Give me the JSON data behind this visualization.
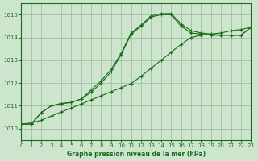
{
  "title": "Graphe pression niveau de la mer (hPa)",
  "bg_color": "#cce5cc",
  "grid_color": "#99bb99",
  "line_color": "#1a6b1a",
  "xlim": [
    0,
    23
  ],
  "ylim": [
    1009.5,
    1015.5
  ],
  "yticks": [
    1010,
    1011,
    1012,
    1013,
    1014,
    1015
  ],
  "xticks": [
    0,
    1,
    2,
    3,
    4,
    5,
    6,
    7,
    8,
    9,
    10,
    11,
    12,
    13,
    14,
    15,
    16,
    17,
    18,
    19,
    20,
    21,
    22,
    23
  ],
  "series_solid1": [
    1010.2,
    1010.2,
    1010.7,
    1011.0,
    1011.1,
    1011.15,
    1011.3,
    1011.6,
    1012.0,
    1012.5,
    1013.25,
    1014.15,
    1014.5,
    1014.9,
    1015.0,
    1015.0,
    1014.5,
    1014.2,
    1014.15,
    1014.1,
    1014.1,
    1014.1,
    1014.1,
    1014.45
  ],
  "series_solid2": [
    1010.2,
    1010.2,
    1010.7,
    1011.0,
    1011.1,
    1011.15,
    1011.3,
    1011.7,
    1012.1,
    1012.6,
    1013.3,
    1014.2,
    1014.55,
    1014.95,
    1015.05,
    1015.05,
    1014.6,
    1014.3,
    1014.2,
    1014.15,
    1014.1,
    1014.1,
    1014.1,
    1014.45
  ],
  "series_linear": [
    1010.2,
    1010.25,
    1010.37,
    1010.55,
    1010.73,
    1010.9,
    1011.08,
    1011.26,
    1011.44,
    1011.62,
    1011.8,
    1011.98,
    1012.3,
    1012.65,
    1013.0,
    1013.35,
    1013.7,
    1014.0,
    1014.1,
    1014.15,
    1014.2,
    1014.3,
    1014.35,
    1014.45
  ]
}
